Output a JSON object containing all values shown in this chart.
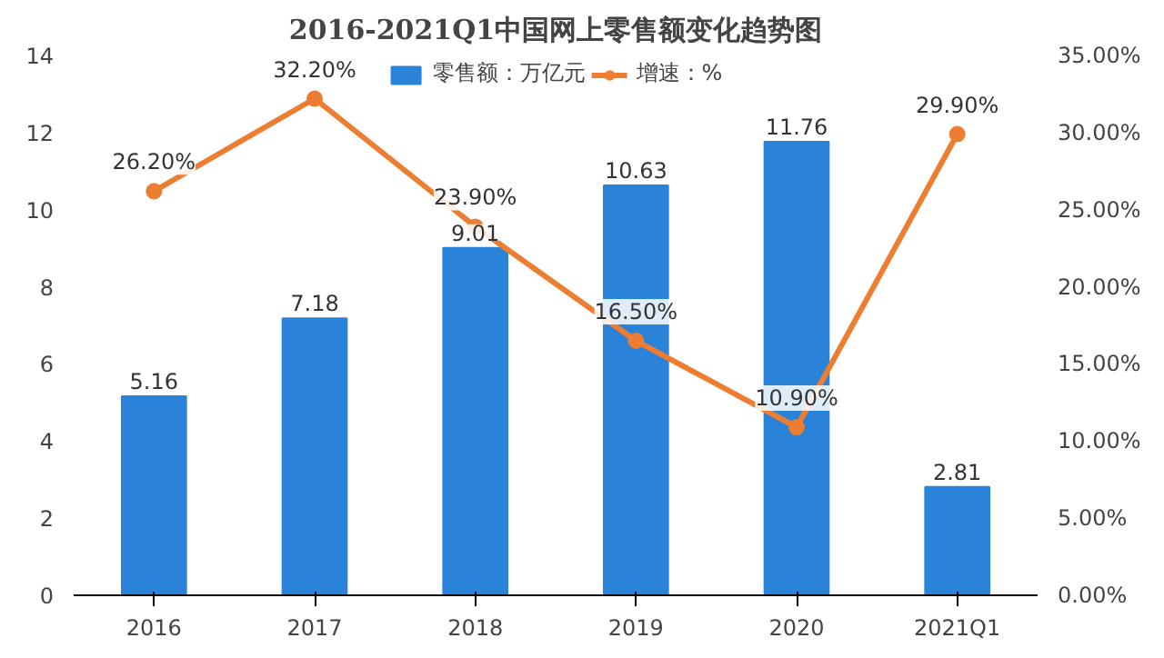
{
  "chart_data": {
    "type": "bar",
    "title": "2016-2021Q1中国网上零售额变化趋势图",
    "categories": [
      "2016",
      "2017",
      "2018",
      "2019",
      "2020",
      "2021Q1"
    ],
    "series": [
      {
        "name": "零售额：万亿元",
        "color": "#2b83d9",
        "values": [
          5.16,
          7.18,
          9.01,
          10.63,
          11.76,
          2.81
        ],
        "value_labels": [
          "5.16",
          "7.18",
          "9.01",
          "10.63",
          "11.76",
          "2.81"
        ]
      },
      {
        "name": "增速：%",
        "type": "line",
        "axis": "y2",
        "color": "#ed7d31",
        "values": [
          26.2,
          32.2,
          23.9,
          16.5,
          10.9,
          29.9
        ],
        "value_labels": [
          "26.20%",
          "32.20%",
          "23.90%",
          "16.50%",
          "10.90%",
          "29.90%"
        ]
      }
    ],
    "ylim": [
      0,
      14
    ],
    "yticks": [
      0,
      2,
      4,
      6,
      8,
      10,
      12,
      14
    ],
    "y2lim": [
      0,
      35
    ],
    "y2ticks": [
      {
        "value": 0,
        "label": "0.00%"
      },
      {
        "value": 5,
        "label": "5.00%"
      },
      {
        "value": 10,
        "label": "10.00%"
      },
      {
        "value": 15,
        "label": "15.00%"
      },
      {
        "value": 20,
        "label": "20.00%"
      },
      {
        "value": 25,
        "label": "25.00%"
      },
      {
        "value": 30,
        "label": "30.00%"
      },
      {
        "value": 35,
        "label": "35.00%"
      }
    ],
    "legend": "top",
    "marker": "circle",
    "line_style": "solid",
    "grid": false
  }
}
